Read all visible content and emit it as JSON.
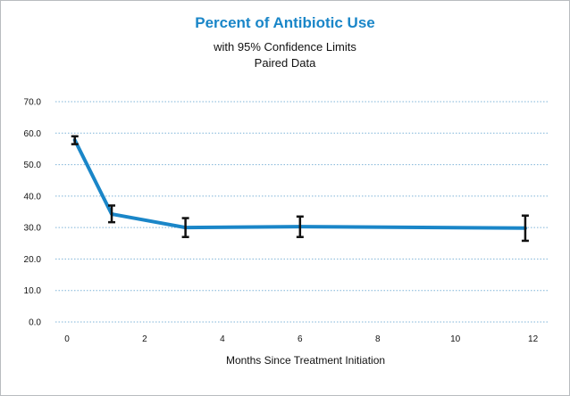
{
  "chart_data": {
    "type": "line",
    "title": "Percent of Antibiotic Use",
    "subtitle": [
      "with 95% Confidence Limits",
      "Paired Data"
    ],
    "xlabel": "Months Since Treatment Initiation",
    "ylabel": "",
    "xlim": [
      -0.3,
      12.4
    ],
    "ylim": [
      0,
      70
    ],
    "x_ticks": [
      {
        "value": 0,
        "label": "0"
      },
      {
        "value": 2,
        "label": "2"
      },
      {
        "value": 4,
        "label": "4"
      },
      {
        "value": 6,
        "label": "6"
      },
      {
        "value": 8,
        "label": "8"
      },
      {
        "value": 10,
        "label": "10"
      },
      {
        "value": 12,
        "label": "12"
      }
    ],
    "y_ticks": [
      {
        "value": 0,
        "label": "0.0"
      },
      {
        "value": 10,
        "label": "10.0"
      },
      {
        "value": 20,
        "label": "20.0"
      },
      {
        "value": 30,
        "label": "30.0"
      },
      {
        "value": 40,
        "label": "40.0"
      },
      {
        "value": 50,
        "label": "50.0"
      },
      {
        "value": 60,
        "label": "60.0"
      },
      {
        "value": 70,
        "label": "70.0"
      }
    ],
    "grid": "horizontal dotted",
    "series": [
      {
        "color": "#1a86c8",
        "points": [
          {
            "x": 0.2,
            "y": 57.8,
            "lower": 56.5,
            "upper": 59.0
          },
          {
            "x": 1.15,
            "y": 34.3,
            "lower": 31.7,
            "upper": 37.0
          },
          {
            "x": 3.05,
            "y": 30.0,
            "lower": 27.0,
            "upper": 33.0
          },
          {
            "x": 6.0,
            "y": 30.3,
            "lower": 27.0,
            "upper": 33.5
          },
          {
            "x": 11.8,
            "y": 29.8,
            "lower": 25.8,
            "upper": 33.8
          }
        ]
      }
    ],
    "errorbar_color": "#111111",
    "grid_color": "#7fb4d8"
  }
}
